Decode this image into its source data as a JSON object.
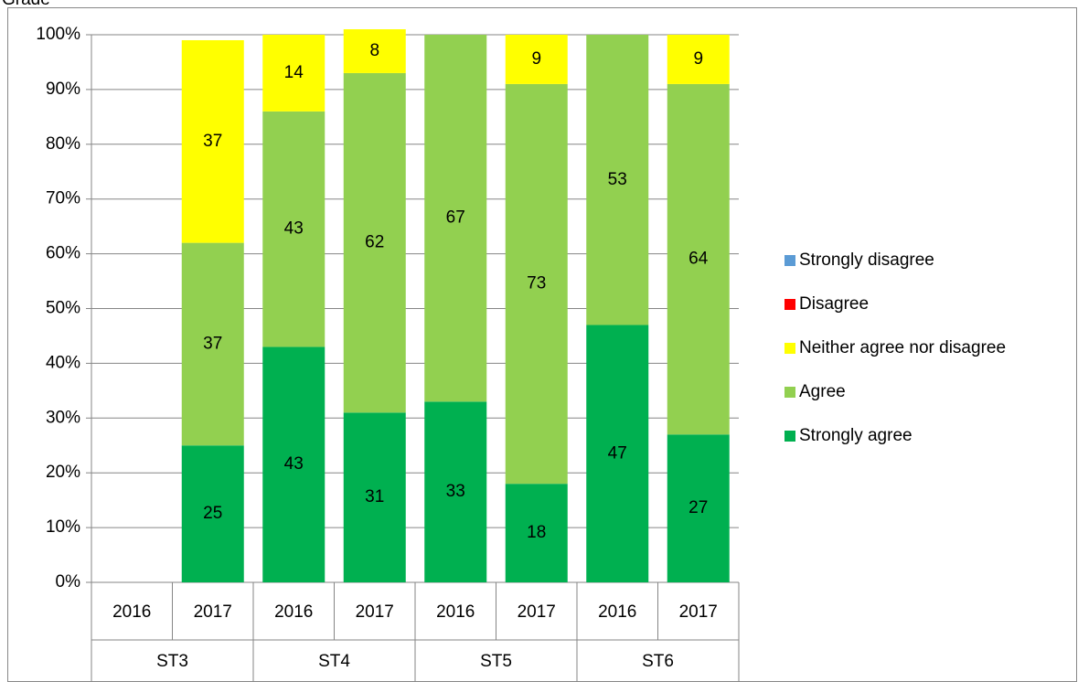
{
  "chart_data": {
    "type": "stacked_bar",
    "title": "Grade",
    "categories": [
      "2016",
      "2017",
      "2016",
      "2017",
      "2016",
      "2017",
      "2016",
      "2017"
    ],
    "groups": [
      "ST3",
      "ST4",
      "ST5",
      "ST6"
    ],
    "series": [
      {
        "name": "Strongly agree",
        "color": "#00b050",
        "values": [
          null,
          25,
          43,
          31,
          33,
          18,
          47,
          27
        ]
      },
      {
        "name": "Agree",
        "color": "#92d050",
        "values": [
          null,
          37,
          43,
          62,
          67,
          73,
          53,
          64
        ]
      },
      {
        "name": "Neither agree nor disagree",
        "color": "#ffff00",
        "values": [
          null,
          37,
          14,
          8,
          null,
          9,
          null,
          9
        ]
      },
      {
        "name": "Disagree",
        "color": "#ff0000",
        "values": [
          null,
          null,
          null,
          null,
          null,
          null,
          null,
          null
        ]
      },
      {
        "name": "Strongly disagree",
        "color": "#5b9bd5",
        "values": [
          null,
          null,
          null,
          null,
          null,
          null,
          null,
          null
        ]
      }
    ],
    "ylim": [
      0,
      100
    ],
    "yticks": [
      {
        "value": 0,
        "label": "0%"
      },
      {
        "value": 10,
        "label": "10%"
      },
      {
        "value": 20,
        "label": "20%"
      },
      {
        "value": 30,
        "label": "30%"
      },
      {
        "value": 40,
        "label": "40%"
      },
      {
        "value": 50,
        "label": "50%"
      },
      {
        "value": 60,
        "label": "60%"
      },
      {
        "value": 70,
        "label": "70%"
      },
      {
        "value": 80,
        "label": "80%"
      },
      {
        "value": 90,
        "label": "90%"
      },
      {
        "value": 100,
        "label": "100%"
      }
    ],
    "grid": true,
    "legend": "right"
  }
}
